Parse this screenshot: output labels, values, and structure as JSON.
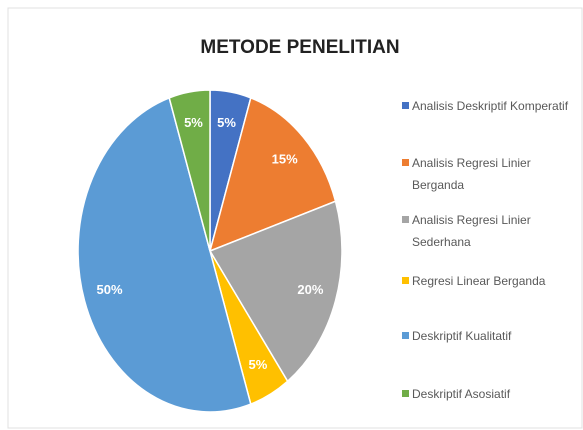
{
  "chart_data": {
    "type": "pie",
    "title": "METODE PENELITIAN",
    "categories": [
      "Analisis Deskriptif Komperatif",
      "Analisis Regresi Linier Berganda",
      "Analisis Regresi Linier Sederhana",
      "Regresi Linear Berganda",
      "Deskriptif Kualitatif",
      "Deskriptif Asosiatif"
    ],
    "values": [
      5,
      15,
      20,
      5,
      50,
      5
    ],
    "value_labels": [
      "5%",
      "15%",
      "20%",
      "5%",
      "50%",
      "5%"
    ],
    "colors": [
      "#4472c4",
      "#ed7d31",
      "#a5a5a5",
      "#ffc000",
      "#5b9bd5",
      "#70ad47"
    ],
    "legend": "right"
  }
}
